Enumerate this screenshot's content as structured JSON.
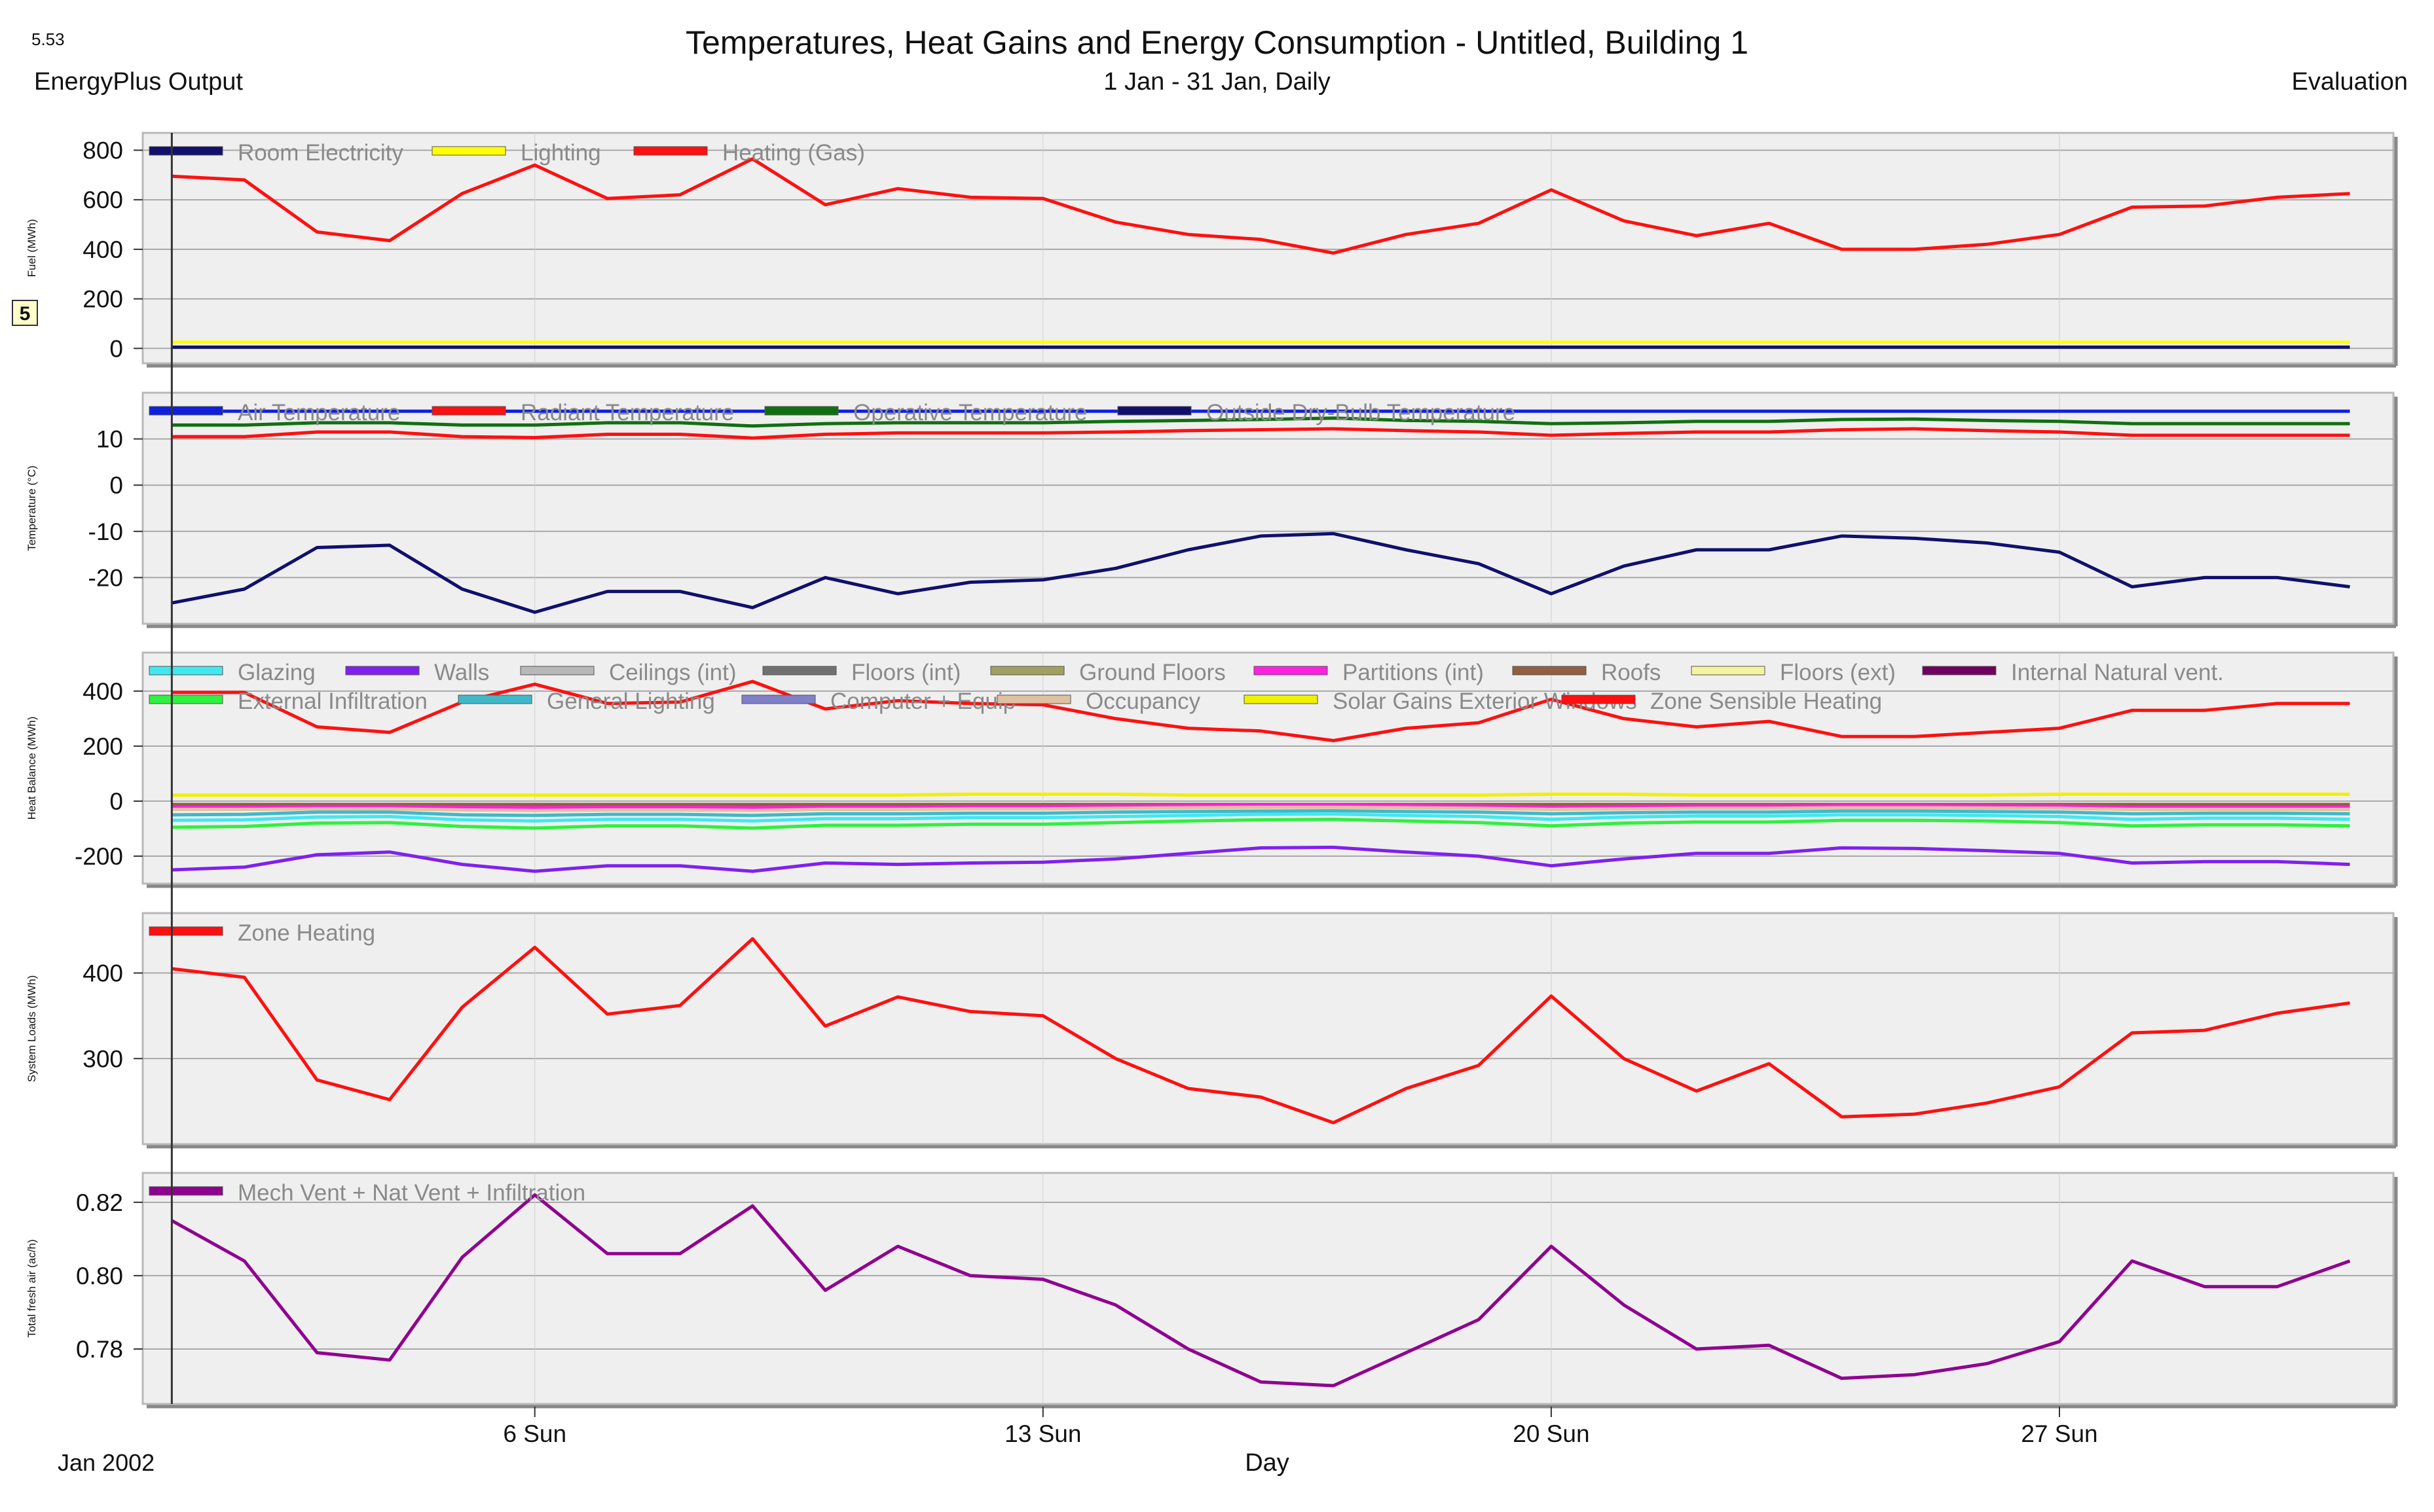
{
  "header": {
    "version": "5.53",
    "title": "Temperatures, Heat Gains and Energy Consumption - Untitled, Building 1",
    "source": "EnergyPlus Output",
    "period": "1 Jan - 31 Jan, Daily",
    "mode": "Evaluation",
    "marker": "5"
  },
  "xaxis": {
    "label": "Day",
    "start_label": "Jan 2002",
    "range": [
      0.6,
      31.6
    ],
    "ticks": [
      {
        "x": 6,
        "label": "6 Sun"
      },
      {
        "x": 13,
        "label": "13 Sun"
      },
      {
        "x": 20,
        "label": "20 Sun"
      },
      {
        "x": 27,
        "label": "27 Sun"
      }
    ],
    "cursor_x": 1
  },
  "chart_data": [
    {
      "type": "line",
      "ylabel": "Fuel (MWh)",
      "ylim": [
        -60,
        870
      ],
      "yticks": [
        0,
        200,
        400,
        600,
        800
      ],
      "legend": [
        {
          "name": "Room Electricity",
          "color": "#10106e"
        },
        {
          "name": "Lighting",
          "color": "#ffff00"
        },
        {
          "name": "Heating (Gas)",
          "color": "#ff1010"
        }
      ],
      "series": [
        {
          "name": "Room Electricity",
          "color": "#10106e",
          "values": [
            5,
            5,
            5,
            5,
            5,
            5,
            5,
            5,
            5,
            5,
            5,
            5,
            5,
            5,
            5,
            5,
            5,
            5,
            5,
            5,
            5,
            5,
            5,
            5,
            5,
            5,
            5,
            5,
            5,
            5,
            5
          ]
        },
        {
          "name": "Lighting",
          "color": "#ffff00",
          "values": [
            25,
            25,
            25,
            25,
            25,
            25,
            25,
            25,
            25,
            25,
            25,
            25,
            25,
            25,
            25,
            25,
            25,
            25,
            25,
            25,
            25,
            25,
            25,
            25,
            25,
            25,
            25,
            25,
            25,
            25,
            25
          ]
        },
        {
          "name": "Heating (Gas)",
          "color": "#ff1010",
          "values": [
            695,
            680,
            470,
            435,
            625,
            740,
            605,
            620,
            765,
            580,
            645,
            610,
            605,
            510,
            460,
            440,
            385,
            460,
            505,
            640,
            515,
            455,
            505,
            400,
            400,
            420,
            460,
            570,
            575,
            610,
            625
          ]
        }
      ]
    },
    {
      "type": "line",
      "ylabel": "Temperature (°C)",
      "ylim": [
        -30,
        20
      ],
      "yticks": [
        -20,
        -10,
        0,
        10
      ],
      "legend": [
        {
          "name": "Air Temperature",
          "color": "#1020e0"
        },
        {
          "name": "Radiant Temperature",
          "color": "#ff1010"
        },
        {
          "name": "Operative Temperature",
          "color": "#107010"
        },
        {
          "name": "Outside Dry-Bulb Temperature",
          "color": "#10106e"
        }
      ],
      "series": [
        {
          "name": "Air Temperature",
          "color": "#1020e0",
          "values": [
            16,
            16,
            16,
            16,
            16,
            16,
            16,
            16,
            16,
            16,
            16,
            16,
            16,
            16,
            16,
            16,
            16,
            16,
            16,
            16,
            16,
            16,
            16,
            16,
            16,
            16,
            16,
            16,
            16,
            16,
            16
          ]
        },
        {
          "name": "Operative Temperature",
          "color": "#107010",
          "values": [
            13,
            13,
            13.5,
            13.5,
            13,
            13,
            13.5,
            13.5,
            12.8,
            13.3,
            13.5,
            13.5,
            13.5,
            13.8,
            14,
            14.2,
            14.5,
            14,
            13.8,
            13.3,
            13.5,
            13.8,
            13.8,
            14.2,
            14.3,
            14,
            13.8,
            13.3,
            13.3,
            13.3,
            13.3
          ]
        },
        {
          "name": "Radiant Temperature",
          "color": "#ff1010",
          "values": [
            10.5,
            10.5,
            11.5,
            11.5,
            10.5,
            10.3,
            11,
            11,
            10.2,
            11,
            11.3,
            11.3,
            11.3,
            11.5,
            11.8,
            12,
            12.2,
            11.8,
            11.5,
            10.8,
            11.2,
            11.5,
            11.5,
            12,
            12.2,
            11.8,
            11.5,
            10.8,
            10.8,
            10.8,
            10.8
          ]
        },
        {
          "name": "Outside Dry-Bulb Temperature",
          "color": "#10106e",
          "values": [
            -25.5,
            -22.5,
            -13.5,
            -13,
            -22.5,
            -27.5,
            -23,
            -23,
            -26.5,
            -20,
            -23.5,
            -21,
            -20.5,
            -18,
            -14,
            -11,
            -10.5,
            -14,
            -17,
            -23.5,
            -17.5,
            -14,
            -14,
            -11,
            -11.5,
            -12.5,
            -14.5,
            -22,
            -20,
            -20,
            -22
          ]
        }
      ]
    },
    {
      "type": "line",
      "ylabel": "Heat Balance (MWh)",
      "ylim": [
        -300,
        540
      ],
      "yticks": [
        -200,
        0,
        200,
        400
      ],
      "legend": [
        {
          "name": "Glazing",
          "color": "#40e8f0"
        },
        {
          "name": "Walls",
          "color": "#8020f0"
        },
        {
          "name": "Ceilings (int)",
          "color": "#b8b8b8"
        },
        {
          "name": "Floors (int)",
          "color": "#707070"
        },
        {
          "name": "Ground Floors",
          "color": "#a0a060"
        },
        {
          "name": "Partitions (int)",
          "color": "#ff20e0"
        },
        {
          "name": "Roofs",
          "color": "#906040"
        },
        {
          "name": "Floors (ext)",
          "color": "#f4f4a0"
        },
        {
          "name": "Internal Natural vent.",
          "color": "#700060"
        },
        {
          "name": "External Infiltration",
          "color": "#30f040"
        },
        {
          "name": "General Lighting",
          "color": "#40b8c8"
        },
        {
          "name": "Computer + Equip",
          "color": "#8080c8"
        },
        {
          "name": "Occupancy",
          "color": "#e0c0a0"
        },
        {
          "name": "Solar Gains Exterior Windows",
          "color": "#f0f000"
        },
        {
          "name": "Zone Sensible Heating",
          "color": "#ff1010"
        }
      ],
      "series": [
        {
          "name": "Solar Gains Exterior Windows",
          "color": "#f0f000",
          "values": [
            22,
            22,
            22,
            22,
            22,
            22,
            22,
            22,
            22,
            22,
            22,
            25,
            25,
            25,
            22,
            22,
            22,
            22,
            22,
            25,
            25,
            22,
            22,
            22,
            22,
            22,
            25,
            25,
            25,
            25,
            25
          ]
        },
        {
          "name": "Roofs",
          "color": "#906040",
          "values": [
            -12,
            -12,
            -12,
            -12,
            -12,
            -12,
            -12,
            -12,
            -12,
            -12,
            -12,
            -12,
            -12,
            -12,
            -12,
            -12,
            -12,
            -12,
            -12,
            -12,
            -12,
            -12,
            -12,
            -12,
            -12,
            -12,
            -12,
            -12,
            -12,
            -12,
            -12
          ]
        },
        {
          "name": "Partitions (int)",
          "color": "#ff20e0",
          "values": [
            -22,
            -22,
            -20,
            -20,
            -22,
            -24,
            -22,
            -22,
            -24,
            -22,
            -22,
            -20,
            -20,
            -18,
            -16,
            -15,
            -14,
            -16,
            -18,
            -22,
            -20,
            -18,
            -18,
            -16,
            -16,
            -17,
            -18,
            -22,
            -22,
            -22,
            -22
          ]
        },
        {
          "name": "Occupancy",
          "color": "#e0c0a0",
          "values": [
            -30,
            -30,
            -28,
            -28,
            -32,
            -34,
            -32,
            -32,
            -34,
            -30,
            -30,
            -28,
            -28,
            -26,
            -24,
            -22,
            -22,
            -24,
            -26,
            -30,
            -28,
            -26,
            -26,
            -24,
            -24,
            -25,
            -26,
            -30,
            -30,
            -30,
            -30
          ]
        },
        {
          "name": "General Lighting",
          "color": "#40b8c8",
          "values": [
            -50,
            -48,
            -40,
            -40,
            -50,
            -52,
            -48,
            -48,
            -52,
            -46,
            -46,
            -44,
            -44,
            -40,
            -38,
            -36,
            -35,
            -38,
            -40,
            -46,
            -42,
            -40,
            -40,
            -36,
            -36,
            -38,
            -40,
            -46,
            -44,
            -44,
            -46
          ]
        },
        {
          "name": "Glazing",
          "color": "#40e8f0",
          "values": [
            -70,
            -68,
            -58,
            -56,
            -68,
            -72,
            -66,
            -66,
            -72,
            -64,
            -64,
            -60,
            -60,
            -56,
            -52,
            -48,
            -47,
            -52,
            -56,
            -66,
            -58,
            -54,
            -54,
            -50,
            -50,
            -52,
            -56,
            -66,
            -62,
            -62,
            -66
          ]
        },
        {
          "name": "External Infiltration",
          "color": "#30f040",
          "values": [
            -95,
            -92,
            -80,
            -78,
            -92,
            -98,
            -90,
            -90,
            -98,
            -88,
            -88,
            -84,
            -84,
            -78,
            -72,
            -68,
            -66,
            -72,
            -78,
            -90,
            -80,
            -76,
            -76,
            -70,
            -70,
            -72,
            -78,
            -90,
            -86,
            -86,
            -90
          ]
        },
        {
          "name": "Walls",
          "color": "#8020f0",
          "values": [
            -250,
            -240,
            -195,
            -185,
            -230,
            -255,
            -235,
            -235,
            -255,
            -225,
            -230,
            -225,
            -222,
            -210,
            -190,
            -170,
            -168,
            -185,
            -200,
            -235,
            -210,
            -190,
            -190,
            -170,
            -172,
            -180,
            -190,
            -225,
            -220,
            -220,
            -230
          ]
        },
        {
          "name": "Zone Sensible Heating",
          "color": "#ff1010",
          "values": [
            395,
            395,
            270,
            250,
            360,
            425,
            355,
            360,
            435,
            335,
            365,
            355,
            350,
            300,
            265,
            255,
            220,
            265,
            285,
            370,
            300,
            270,
            290,
            235,
            235,
            250,
            265,
            330,
            330,
            355,
            355
          ]
        }
      ]
    },
    {
      "type": "line",
      "ylabel": "System Loads (MWh)",
      "ylim": [
        200,
        470
      ],
      "yticks": [
        300,
        400
      ],
      "legend": [
        {
          "name": "Zone Heating",
          "color": "#ff1010"
        }
      ],
      "series": [
        {
          "name": "Zone Heating",
          "color": "#ff1010",
          "values": [
            405,
            395,
            275,
            252,
            360,
            430,
            352,
            362,
            440,
            338,
            372,
            355,
            350,
            300,
            265,
            255,
            225,
            265,
            292,
            373,
            300,
            262,
            294,
            232,
            235,
            248,
            267,
            330,
            333,
            353,
            365
          ]
        }
      ]
    },
    {
      "type": "line",
      "ylabel": "Total fresh air (ac/h)",
      "ylim": [
        0.765,
        0.828
      ],
      "yticks": [
        0.78,
        0.8,
        0.82
      ],
      "yformat": "2dp",
      "legend": [
        {
          "name": "Mech Vent + Nat Vent + Infiltration",
          "color": "#900090"
        }
      ],
      "series": [
        {
          "name": "Mech Vent + Nat Vent + Infiltration",
          "color": "#900090",
          "values": [
            0.815,
            0.804,
            0.779,
            0.777,
            0.805,
            0.822,
            0.806,
            0.806,
            0.819,
            0.796,
            0.808,
            0.8,
            0.799,
            0.792,
            0.78,
            0.771,
            0.77,
            0.779,
            0.788,
            0.808,
            0.792,
            0.78,
            0.781,
            0.772,
            0.773,
            0.776,
            0.782,
            0.804,
            0.797,
            0.797,
            0.804
          ]
        }
      ]
    }
  ]
}
